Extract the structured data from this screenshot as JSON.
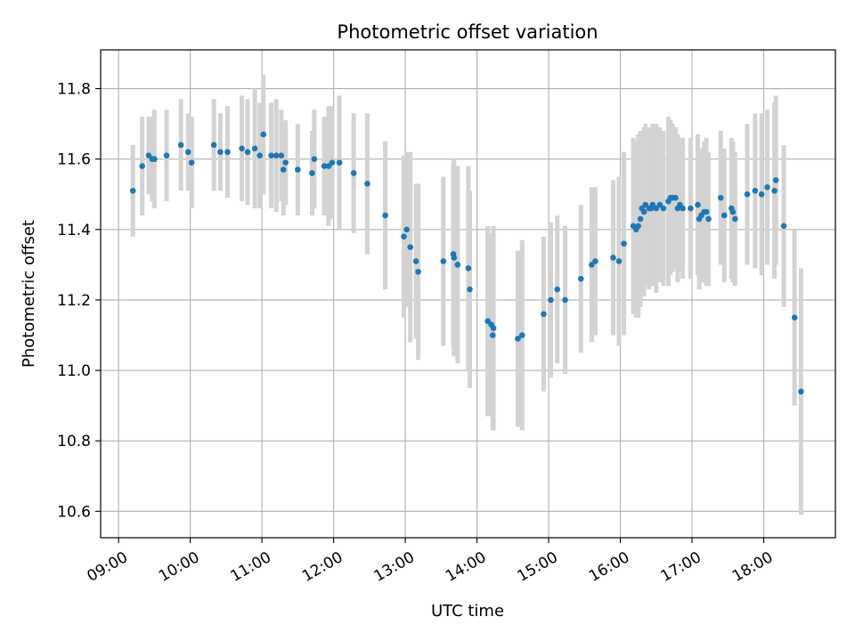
{
  "chart_data": {
    "type": "scatter",
    "title": "Photometric offset variation",
    "xlabel": "UTC time",
    "ylabel": "Photometric offset",
    "xlim": [
      8.75,
      19.0
    ],
    "ylim": [
      10.525,
      11.91
    ],
    "xticks": [
      9,
      10,
      11,
      12,
      13,
      14,
      15,
      16,
      17,
      18
    ],
    "xtick_labels": [
      "09:00",
      "10:00",
      "11:00",
      "12:00",
      "13:00",
      "14:00",
      "15:00",
      "16:00",
      "17:00",
      "18:00"
    ],
    "yticks": [
      10.6,
      10.8,
      11.0,
      11.2,
      11.4,
      11.6,
      11.8
    ],
    "ytick_labels": [
      "10.6",
      "10.8",
      "11.0",
      "11.2",
      "11.4",
      "11.6",
      "11.8"
    ],
    "grid": true,
    "colors": {
      "point": "#1f77b4",
      "errorbar": "#d3d3d3",
      "grid": "#b0b0b0"
    },
    "series": [
      {
        "name": "offset",
        "x": [
          9.2,
          9.33,
          9.42,
          9.47,
          9.5,
          9.67,
          9.87,
          9.97,
          10.02,
          10.33,
          10.42,
          10.52,
          10.72,
          10.8,
          10.9,
          10.97,
          11.02,
          11.13,
          11.2,
          11.27,
          11.3,
          11.33,
          11.5,
          11.7,
          11.73,
          11.87,
          11.93,
          11.98,
          12.08,
          12.28,
          12.47,
          12.72,
          12.98,
          13.02,
          13.07,
          13.15,
          13.18,
          13.53,
          13.67,
          13.68,
          13.73,
          13.88,
          13.9,
          14.15,
          14.2,
          14.22,
          14.23,
          14.57,
          14.63,
          14.93,
          15.03,
          15.12,
          15.23,
          15.45,
          15.6,
          15.65,
          15.9,
          15.98,
          16.05,
          16.18,
          16.22,
          16.25,
          16.28,
          16.3,
          16.33,
          16.35,
          16.4,
          16.43,
          16.45,
          16.5,
          16.55,
          16.6,
          16.67,
          16.7,
          16.73,
          16.77,
          16.8,
          16.83,
          16.87,
          16.98,
          17.08,
          17.1,
          17.13,
          17.17,
          17.2,
          17.23,
          17.4,
          17.45,
          17.55,
          17.57,
          17.6,
          17.77,
          17.88,
          17.97,
          18.05,
          18.15,
          18.17,
          18.28,
          18.43,
          18.52
        ],
        "y": [
          11.51,
          11.58,
          11.61,
          11.6,
          11.6,
          11.61,
          11.64,
          11.62,
          11.59,
          11.64,
          11.62,
          11.62,
          11.63,
          11.62,
          11.63,
          11.61,
          11.67,
          11.61,
          11.61,
          11.61,
          11.57,
          11.59,
          11.57,
          11.56,
          11.6,
          11.58,
          11.58,
          11.59,
          11.59,
          11.56,
          11.53,
          11.44,
          11.38,
          11.4,
          11.35,
          11.31,
          11.28,
          11.31,
          11.33,
          11.32,
          11.3,
          11.29,
          11.23,
          11.14,
          11.13,
          11.1,
          11.12,
          11.09,
          11.1,
          11.16,
          11.2,
          11.23,
          11.2,
          11.26,
          11.3,
          11.31,
          11.32,
          11.31,
          11.36,
          11.41,
          11.4,
          11.41,
          11.43,
          11.46,
          11.45,
          11.47,
          11.46,
          11.46,
          11.47,
          11.46,
          11.47,
          11.46,
          11.48,
          11.49,
          11.49,
          11.49,
          11.46,
          11.47,
          11.46,
          11.46,
          11.47,
          11.43,
          11.44,
          11.45,
          11.45,
          11.43,
          11.49,
          11.44,
          11.46,
          11.45,
          11.43,
          11.5,
          11.51,
          11.5,
          11.52,
          11.51,
          11.54,
          11.41,
          11.15,
          10.94
        ],
        "err": [
          0.13,
          0.14,
          0.11,
          0.12,
          0.14,
          0.13,
          0.13,
          0.11,
          0.13,
          0.13,
          0.11,
          0.13,
          0.15,
          0.15,
          0.17,
          0.15,
          0.17,
          0.15,
          0.16,
          0.13,
          0.13,
          0.12,
          0.13,
          0.12,
          0.14,
          0.14,
          0.17,
          0.16,
          0.19,
          0.17,
          0.2,
          0.21,
          0.23,
          0.22,
          0.27,
          0.22,
          0.25,
          0.24,
          0.26,
          0.28,
          0.28,
          0.29,
          0.28,
          0.27,
          0.26,
          0.27,
          0.29,
          0.25,
          0.27,
          0.22,
          0.22,
          0.21,
          0.21,
          0.21,
          0.22,
          0.21,
          0.22,
          0.24,
          0.26,
          0.25,
          0.25,
          0.26,
          0.25,
          0.21,
          0.24,
          0.23,
          0.23,
          0.22,
          0.23,
          0.24,
          0.22,
          0.22,
          0.24,
          0.22,
          0.21,
          0.2,
          0.21,
          0.19,
          0.2,
          0.2,
          0.2,
          0.2,
          0.19,
          0.2,
          0.21,
          0.19,
          0.19,
          0.19,
          0.2,
          0.2,
          0.19,
          0.2,
          0.22,
          0.23,
          0.22,
          0.25,
          0.24,
          0.23,
          0.25,
          0.35
        ]
      }
    ]
  }
}
